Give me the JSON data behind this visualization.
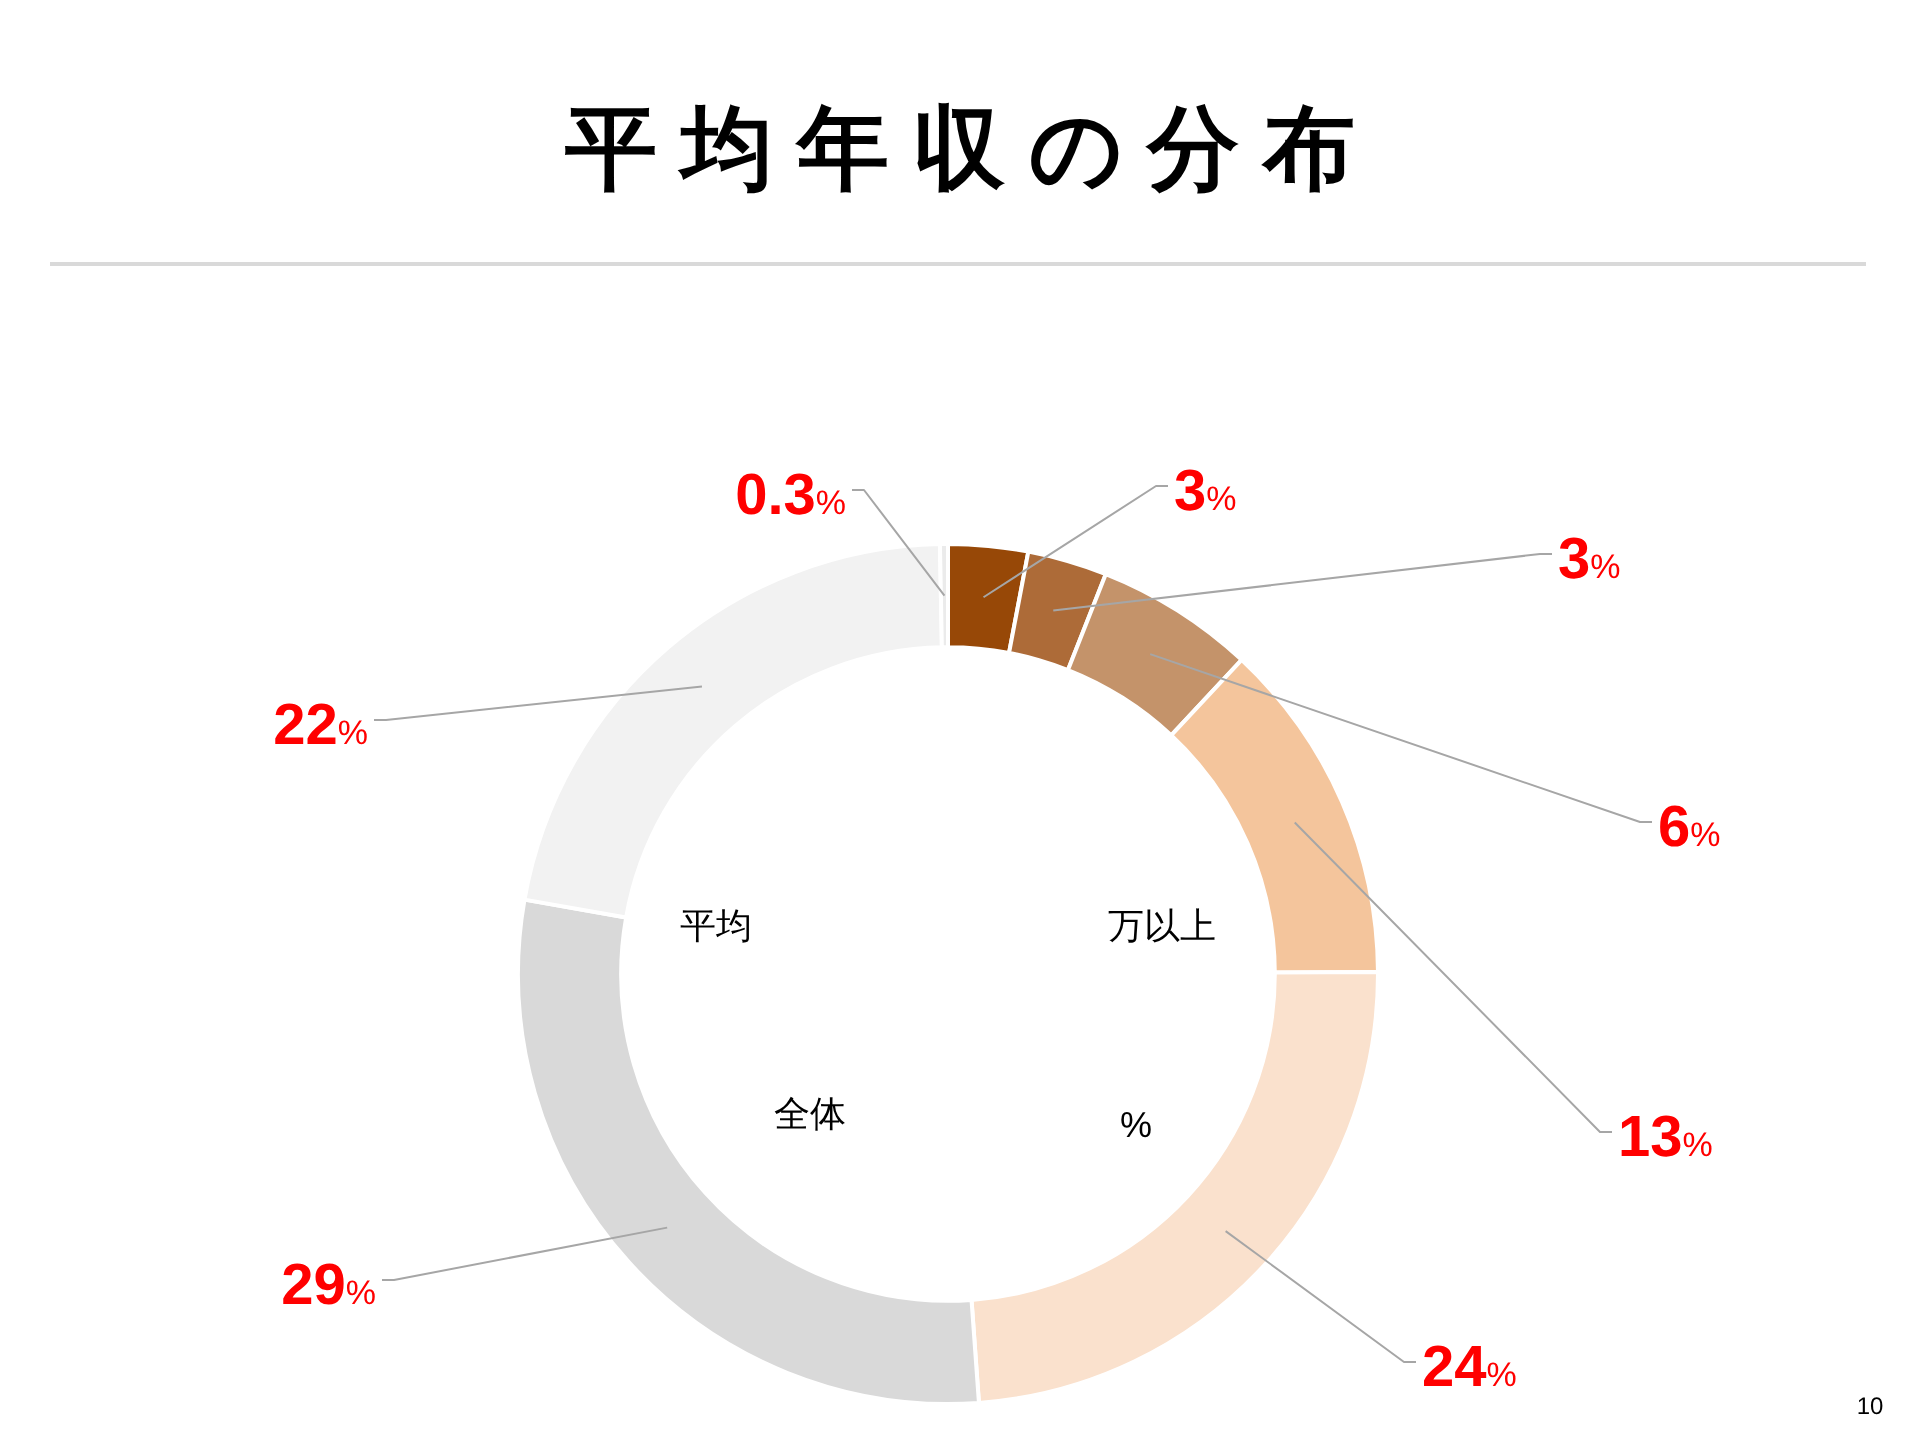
{
  "chart_data": {
    "type": "donut",
    "title": "平均年収の分布",
    "categories": [
      null,
      null,
      null,
      null,
      null,
      null,
      null,
      null
    ],
    "values": [
      3,
      3,
      6,
      13,
      24,
      29,
      22,
      0.3
    ],
    "colors": [
      "#974807",
      "#ad6b38",
      "#c4936a",
      "#f4c59c",
      "#fae1cd",
      "#d9d9d9",
      "#f2f2f2",
      "#ebebeb"
    ],
    "value_labels": [
      "3%",
      "3%",
      "6%",
      "13%",
      "24%",
      "29%",
      "22%",
      "0.3%"
    ],
    "annotations": [
      "平均",
      "万以上",
      "全体",
      "%",
      "10"
    ]
  }
}
